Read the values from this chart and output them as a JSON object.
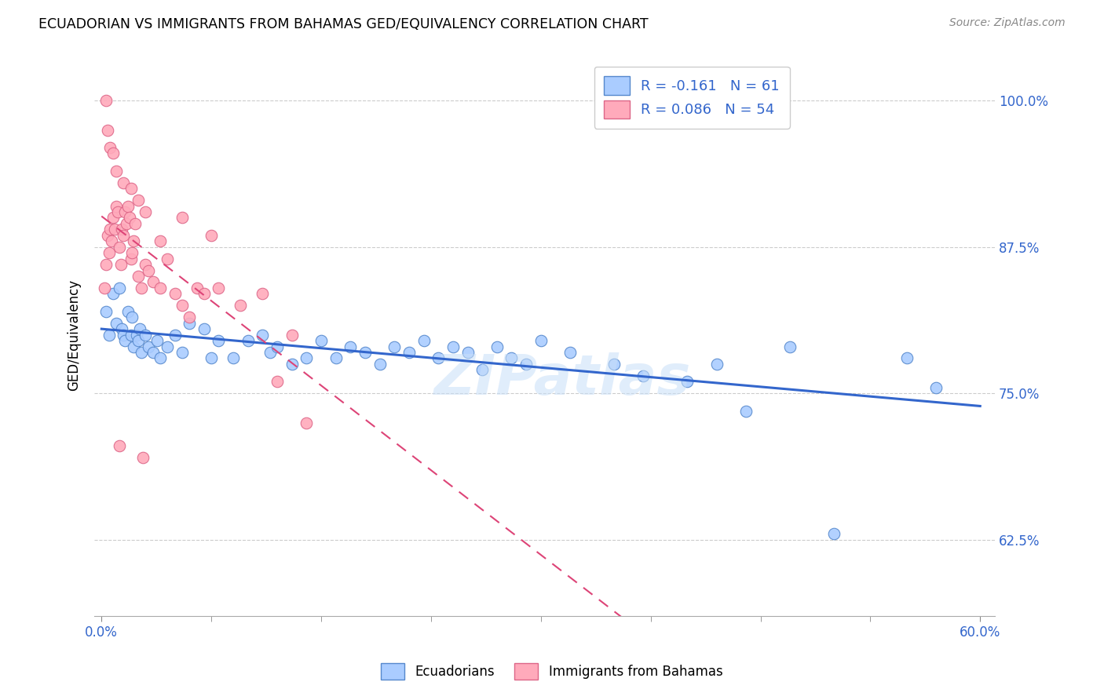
{
  "title": "ECUADORIAN VS IMMIGRANTS FROM BAHAMAS GED/EQUIVALENCY CORRELATION CHART",
  "source": "Source: ZipAtlas.com",
  "xlabel_ticks_show": [
    "0.0%",
    "60.0%"
  ],
  "xlabel_ticks_pos": [
    0.0,
    60.0
  ],
  "xlabel_minor_pos": [
    7.5,
    15.0,
    22.5,
    30.0,
    37.5,
    45.0,
    52.5
  ],
  "ylabel_ticks": [
    "62.5%",
    "75.0%",
    "87.5%",
    "100.0%"
  ],
  "ylabel_vals": [
    62.5,
    75.0,
    87.5,
    100.0
  ],
  "xlim": [
    -0.5,
    61.0
  ],
  "ylim": [
    56.0,
    104.0
  ],
  "blue_R": -0.161,
  "blue_N": 61,
  "pink_R": 0.086,
  "pink_N": 54,
  "legend_labels": [
    "Ecuadorians",
    "Immigrants from Bahamas"
  ],
  "blue_color": "#aaccff",
  "pink_color": "#ffaabb",
  "blue_edge": "#5588cc",
  "pink_edge": "#dd6688",
  "blue_x": [
    0.3,
    0.5,
    0.8,
    1.0,
    1.2,
    1.4,
    1.5,
    1.6,
    1.8,
    2.0,
    2.1,
    2.2,
    2.4,
    2.5,
    2.6,
    2.7,
    3.0,
    3.2,
    3.5,
    3.8,
    4.0,
    4.5,
    5.0,
    5.5,
    6.0,
    7.0,
    7.5,
    8.0,
    9.0,
    10.0,
    11.0,
    11.5,
    12.0,
    13.0,
    14.0,
    15.0,
    16.0,
    17.0,
    18.0,
    19.0,
    20.0,
    21.0,
    22.0,
    23.0,
    24.0,
    25.0,
    26.0,
    27.0,
    28.0,
    29.0,
    30.0,
    32.0,
    35.0,
    37.0,
    40.0,
    42.0,
    44.0,
    47.0,
    50.0,
    55.0,
    57.0
  ],
  "blue_y": [
    82.0,
    80.0,
    83.5,
    81.0,
    84.0,
    80.5,
    80.0,
    79.5,
    82.0,
    80.0,
    81.5,
    79.0,
    80.0,
    79.5,
    80.5,
    78.5,
    80.0,
    79.0,
    78.5,
    79.5,
    78.0,
    79.0,
    80.0,
    78.5,
    81.0,
    80.5,
    78.0,
    79.5,
    78.0,
    79.5,
    80.0,
    78.5,
    79.0,
    77.5,
    78.0,
    79.5,
    78.0,
    79.0,
    78.5,
    77.5,
    79.0,
    78.5,
    79.5,
    78.0,
    79.0,
    78.5,
    77.0,
    79.0,
    78.0,
    77.5,
    79.5,
    78.5,
    77.5,
    76.5,
    76.0,
    77.5,
    73.5,
    79.0,
    63.0,
    78.0,
    75.5
  ],
  "pink_x": [
    0.2,
    0.3,
    0.4,
    0.5,
    0.6,
    0.7,
    0.8,
    0.9,
    1.0,
    1.1,
    1.2,
    1.3,
    1.4,
    1.5,
    1.6,
    1.7,
    1.8,
    1.9,
    2.0,
    2.1,
    2.2,
    2.3,
    2.5,
    2.7,
    3.0,
    3.2,
    3.5,
    4.0,
    4.5,
    5.0,
    5.5,
    6.0,
    6.5,
    7.0,
    8.0,
    9.5,
    11.0,
    12.0,
    13.0,
    14.0,
    0.4,
    0.6,
    0.8,
    1.0,
    1.5,
    2.0,
    2.5,
    3.0,
    4.0,
    5.5,
    7.5,
    1.2,
    2.8,
    0.3
  ],
  "pink_y": [
    84.0,
    86.0,
    88.5,
    87.0,
    89.0,
    88.0,
    90.0,
    89.0,
    91.0,
    90.5,
    87.5,
    86.0,
    89.0,
    88.5,
    90.5,
    89.5,
    91.0,
    90.0,
    86.5,
    87.0,
    88.0,
    89.5,
    85.0,
    84.0,
    86.0,
    85.5,
    84.5,
    84.0,
    86.5,
    83.5,
    82.5,
    81.5,
    84.0,
    83.5,
    84.0,
    82.5,
    83.5,
    76.0,
    80.0,
    72.5,
    97.5,
    96.0,
    95.5,
    94.0,
    93.0,
    92.5,
    91.5,
    90.5,
    88.0,
    90.0,
    88.5,
    70.5,
    69.5,
    100.0
  ],
  "watermark": "ZIPatlas",
  "watermark_color": "#c8dff8"
}
